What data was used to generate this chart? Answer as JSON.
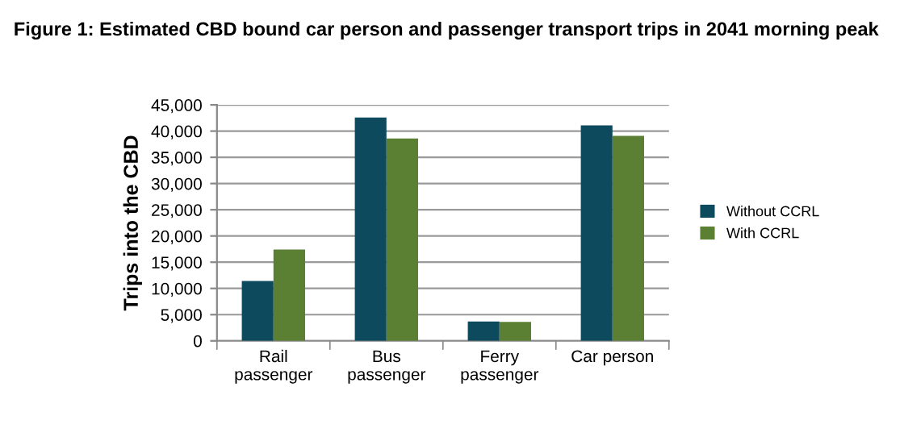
{
  "chart_data": {
    "type": "bar",
    "title": "Figure 1: Estimated CBD bound car person and passenger transport trips in 2041 morning peak",
    "ylabel": "Trips into the CBD",
    "categories": [
      "Rail\npassenger",
      "Bus\npassenger",
      "Ferry\npassenger",
      "Car person"
    ],
    "series": [
      {
        "name": "Without CCRL",
        "color": "#0d4a5e",
        "values": [
          11400,
          42600,
          3700,
          41100
        ]
      },
      {
        "name": "With CCRL",
        "color": "#5b7f33",
        "values": [
          17400,
          38600,
          3600,
          39100
        ]
      }
    ],
    "ylim": [
      0,
      45000
    ],
    "yticks": [
      {
        "value": 0,
        "label": "0"
      },
      {
        "value": 5000,
        "label": "5,000"
      },
      {
        "value": 10000,
        "label": "10,000"
      },
      {
        "value": 15000,
        "label": "15,000"
      },
      {
        "value": 20000,
        "label": "20,000"
      },
      {
        "value": 25000,
        "label": "25,000"
      },
      {
        "value": 30000,
        "label": "30,000"
      },
      {
        "value": 35000,
        "label": "35,000"
      },
      {
        "value": 40000,
        "label": "40,000"
      },
      {
        "value": 45000,
        "label": "45,000"
      }
    ],
    "grid": "y",
    "legend": "right"
  }
}
